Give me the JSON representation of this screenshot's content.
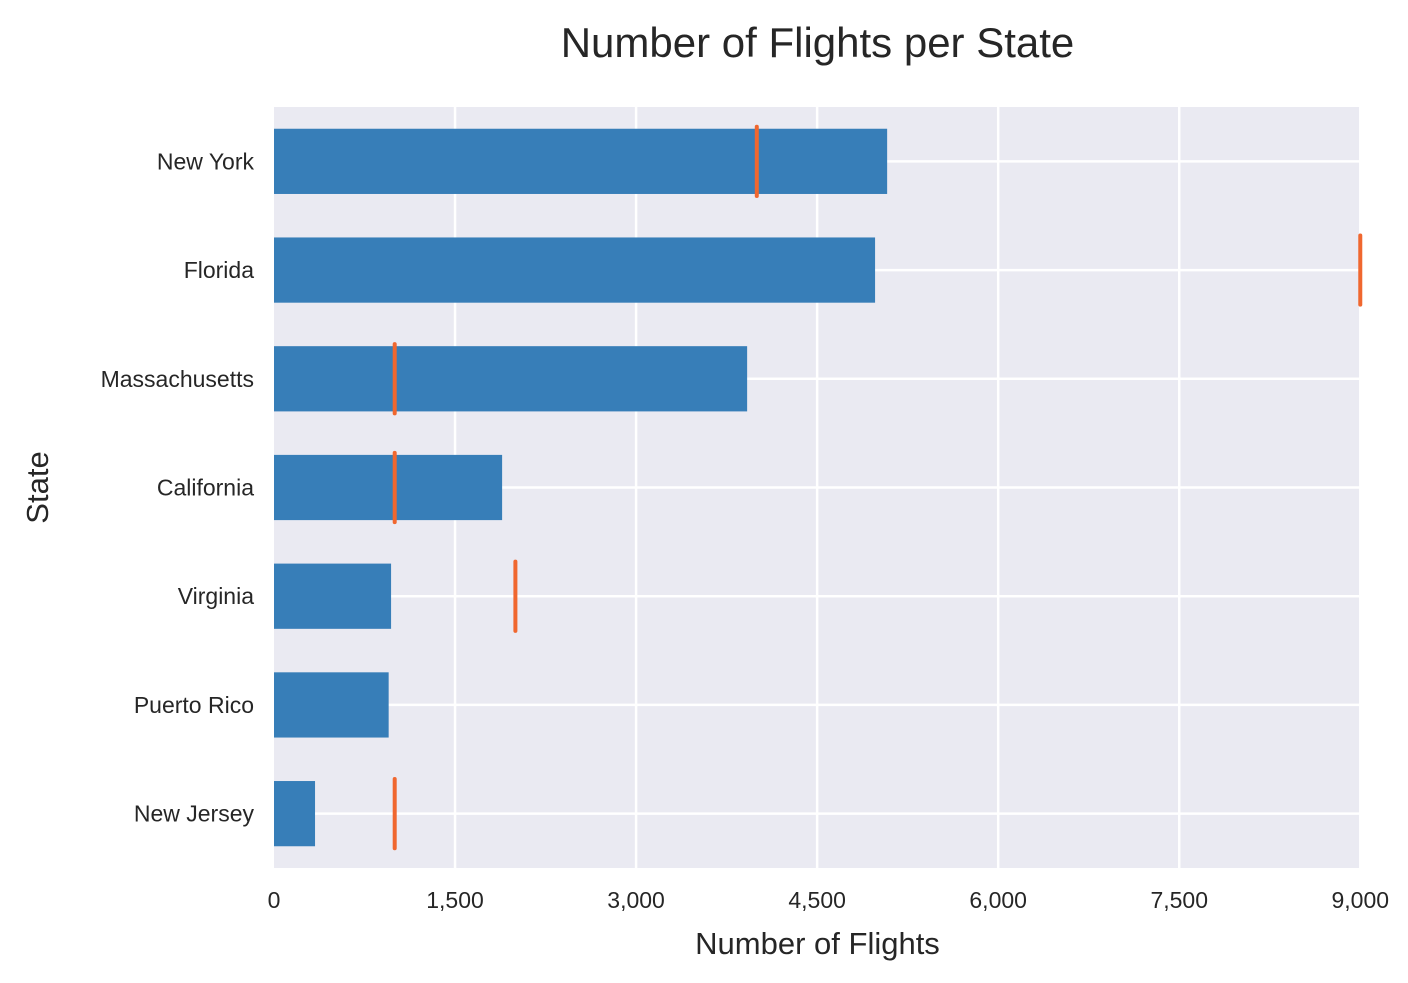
{
  "chart_data": {
    "type": "bar",
    "orientation": "horizontal",
    "title": "Number of Flights per State",
    "xlabel": "Number of Flights",
    "ylabel": "State",
    "xlim": [
      0,
      9000
    ],
    "x_ticks": [
      0,
      1500,
      3000,
      4500,
      6000,
      7500,
      9000
    ],
    "x_tick_labels": [
      "0",
      "1,500",
      "3,000",
      "4,500",
      "6,000",
      "7,500",
      "9,000"
    ],
    "categories": [
      "New York",
      "Florida",
      "Massachusetts",
      "California",
      "Virginia",
      "Puerto Rico",
      "New Jersey"
    ],
    "values": [
      5080,
      4980,
      3920,
      1890,
      970,
      950,
      340
    ],
    "markers": [
      4000,
      9000,
      1000,
      1000,
      2000,
      null,
      1000
    ],
    "grid": true,
    "colors": {
      "bar": "#377eb8",
      "marker": "#f0672f",
      "plot_background": "#eaeaf2",
      "grid": "#ffffff",
      "text": "#262626"
    }
  }
}
